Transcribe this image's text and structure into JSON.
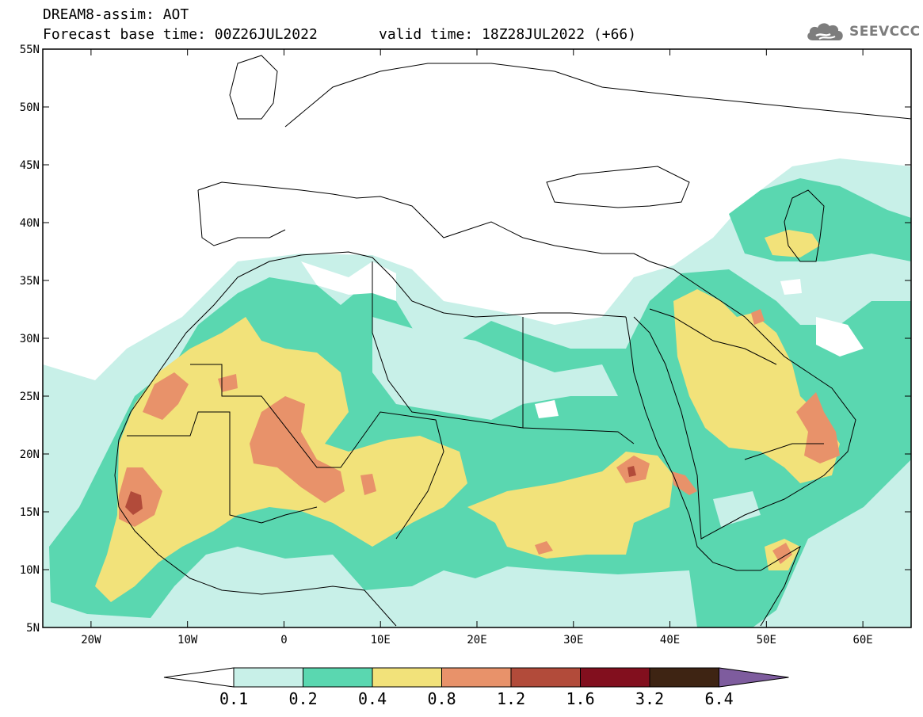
{
  "header": {
    "title": "DREAM8-assim: AOT",
    "base_time": "Forecast base time: 00Z26JUL2022",
    "valid_time": "valid time: 18Z28JUL2022 (+66)",
    "logo_text": "SEEVCCC",
    "logo_icon": "cloud-icon"
  },
  "map": {
    "lat_ticks": [
      "55N",
      "50N",
      "45N",
      "40N",
      "35N",
      "30N",
      "25N",
      "20N",
      "15N",
      "10N",
      "5N"
    ],
    "lon_ticks": [
      "20W",
      "10W",
      "0",
      "10E",
      "20E",
      "30E",
      "40E",
      "50E",
      "60E"
    ],
    "lon_range": [
      -25,
      65
    ],
    "lat_range": [
      5,
      55
    ],
    "field": "AOT"
  },
  "colorbar": {
    "levels": [
      "0.1",
      "0.2",
      "0.4",
      "0.8",
      "1.2",
      "1.6",
      "3.2",
      "6.4"
    ],
    "colors": [
      "#ffffff",
      "#c8f0e8",
      "#5ad7b0",
      "#f2e27a",
      "#e8926a",
      "#b24b3a",
      "#820f1e",
      "#3e2413",
      "#7e5c9e"
    ]
  }
}
